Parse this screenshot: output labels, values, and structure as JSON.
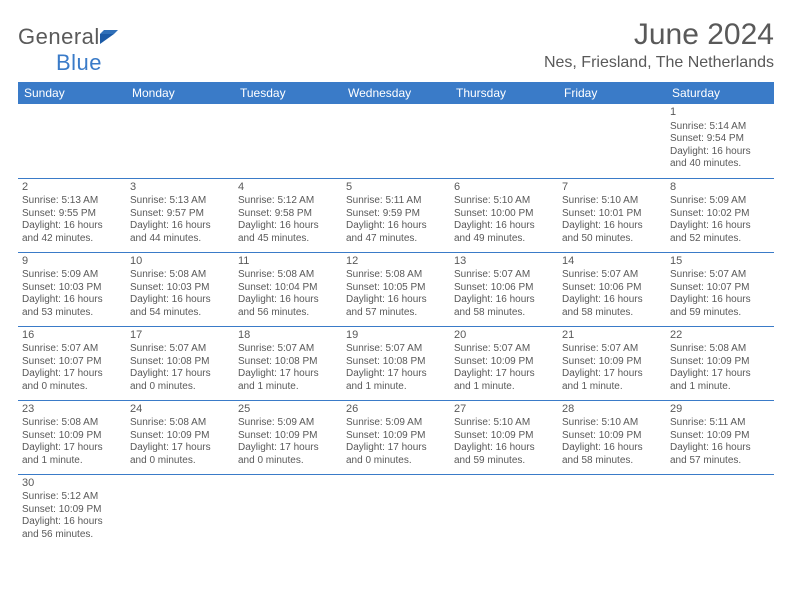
{
  "logo": {
    "text_general": "General",
    "text_blue": "Blue"
  },
  "title": "June 2024",
  "location": "Nes, Friesland, The Netherlands",
  "colors": {
    "header_bg": "#3a7bc8",
    "header_text": "#ffffff",
    "body_text": "#595959",
    "row_border": "#3a7bc8",
    "background": "#ffffff"
  },
  "day_headers": [
    "Sunday",
    "Monday",
    "Tuesday",
    "Wednesday",
    "Thursday",
    "Friday",
    "Saturday"
  ],
  "weeks": [
    [
      null,
      null,
      null,
      null,
      null,
      null,
      {
        "n": "1",
        "sr": "Sunrise: 5:14 AM",
        "ss": "Sunset: 9:54 PM",
        "dl1": "Daylight: 16 hours",
        "dl2": "and 40 minutes."
      }
    ],
    [
      {
        "n": "2",
        "sr": "Sunrise: 5:13 AM",
        "ss": "Sunset: 9:55 PM",
        "dl1": "Daylight: 16 hours",
        "dl2": "and 42 minutes."
      },
      {
        "n": "3",
        "sr": "Sunrise: 5:13 AM",
        "ss": "Sunset: 9:57 PM",
        "dl1": "Daylight: 16 hours",
        "dl2": "and 44 minutes."
      },
      {
        "n": "4",
        "sr": "Sunrise: 5:12 AM",
        "ss": "Sunset: 9:58 PM",
        "dl1": "Daylight: 16 hours",
        "dl2": "and 45 minutes."
      },
      {
        "n": "5",
        "sr": "Sunrise: 5:11 AM",
        "ss": "Sunset: 9:59 PM",
        "dl1": "Daylight: 16 hours",
        "dl2": "and 47 minutes."
      },
      {
        "n": "6",
        "sr": "Sunrise: 5:10 AM",
        "ss": "Sunset: 10:00 PM",
        "dl1": "Daylight: 16 hours",
        "dl2": "and 49 minutes."
      },
      {
        "n": "7",
        "sr": "Sunrise: 5:10 AM",
        "ss": "Sunset: 10:01 PM",
        "dl1": "Daylight: 16 hours",
        "dl2": "and 50 minutes."
      },
      {
        "n": "8",
        "sr": "Sunrise: 5:09 AM",
        "ss": "Sunset: 10:02 PM",
        "dl1": "Daylight: 16 hours",
        "dl2": "and 52 minutes."
      }
    ],
    [
      {
        "n": "9",
        "sr": "Sunrise: 5:09 AM",
        "ss": "Sunset: 10:03 PM",
        "dl1": "Daylight: 16 hours",
        "dl2": "and 53 minutes."
      },
      {
        "n": "10",
        "sr": "Sunrise: 5:08 AM",
        "ss": "Sunset: 10:03 PM",
        "dl1": "Daylight: 16 hours",
        "dl2": "and 54 minutes."
      },
      {
        "n": "11",
        "sr": "Sunrise: 5:08 AM",
        "ss": "Sunset: 10:04 PM",
        "dl1": "Daylight: 16 hours",
        "dl2": "and 56 minutes."
      },
      {
        "n": "12",
        "sr": "Sunrise: 5:08 AM",
        "ss": "Sunset: 10:05 PM",
        "dl1": "Daylight: 16 hours",
        "dl2": "and 57 minutes."
      },
      {
        "n": "13",
        "sr": "Sunrise: 5:07 AM",
        "ss": "Sunset: 10:06 PM",
        "dl1": "Daylight: 16 hours",
        "dl2": "and 58 minutes."
      },
      {
        "n": "14",
        "sr": "Sunrise: 5:07 AM",
        "ss": "Sunset: 10:06 PM",
        "dl1": "Daylight: 16 hours",
        "dl2": "and 58 minutes."
      },
      {
        "n": "15",
        "sr": "Sunrise: 5:07 AM",
        "ss": "Sunset: 10:07 PM",
        "dl1": "Daylight: 16 hours",
        "dl2": "and 59 minutes."
      }
    ],
    [
      {
        "n": "16",
        "sr": "Sunrise: 5:07 AM",
        "ss": "Sunset: 10:07 PM",
        "dl1": "Daylight: 17 hours",
        "dl2": "and 0 minutes."
      },
      {
        "n": "17",
        "sr": "Sunrise: 5:07 AM",
        "ss": "Sunset: 10:08 PM",
        "dl1": "Daylight: 17 hours",
        "dl2": "and 0 minutes."
      },
      {
        "n": "18",
        "sr": "Sunrise: 5:07 AM",
        "ss": "Sunset: 10:08 PM",
        "dl1": "Daylight: 17 hours",
        "dl2": "and 1 minute."
      },
      {
        "n": "19",
        "sr": "Sunrise: 5:07 AM",
        "ss": "Sunset: 10:08 PM",
        "dl1": "Daylight: 17 hours",
        "dl2": "and 1 minute."
      },
      {
        "n": "20",
        "sr": "Sunrise: 5:07 AM",
        "ss": "Sunset: 10:09 PM",
        "dl1": "Daylight: 17 hours",
        "dl2": "and 1 minute."
      },
      {
        "n": "21",
        "sr": "Sunrise: 5:07 AM",
        "ss": "Sunset: 10:09 PM",
        "dl1": "Daylight: 17 hours",
        "dl2": "and 1 minute."
      },
      {
        "n": "22",
        "sr": "Sunrise: 5:08 AM",
        "ss": "Sunset: 10:09 PM",
        "dl1": "Daylight: 17 hours",
        "dl2": "and 1 minute."
      }
    ],
    [
      {
        "n": "23",
        "sr": "Sunrise: 5:08 AM",
        "ss": "Sunset: 10:09 PM",
        "dl1": "Daylight: 17 hours",
        "dl2": "and 1 minute."
      },
      {
        "n": "24",
        "sr": "Sunrise: 5:08 AM",
        "ss": "Sunset: 10:09 PM",
        "dl1": "Daylight: 17 hours",
        "dl2": "and 0 minutes."
      },
      {
        "n": "25",
        "sr": "Sunrise: 5:09 AM",
        "ss": "Sunset: 10:09 PM",
        "dl1": "Daylight: 17 hours",
        "dl2": "and 0 minutes."
      },
      {
        "n": "26",
        "sr": "Sunrise: 5:09 AM",
        "ss": "Sunset: 10:09 PM",
        "dl1": "Daylight: 17 hours",
        "dl2": "and 0 minutes."
      },
      {
        "n": "27",
        "sr": "Sunrise: 5:10 AM",
        "ss": "Sunset: 10:09 PM",
        "dl1": "Daylight: 16 hours",
        "dl2": "and 59 minutes."
      },
      {
        "n": "28",
        "sr": "Sunrise: 5:10 AM",
        "ss": "Sunset: 10:09 PM",
        "dl1": "Daylight: 16 hours",
        "dl2": "and 58 minutes."
      },
      {
        "n": "29",
        "sr": "Sunrise: 5:11 AM",
        "ss": "Sunset: 10:09 PM",
        "dl1": "Daylight: 16 hours",
        "dl2": "and 57 minutes."
      }
    ],
    [
      {
        "n": "30",
        "sr": "Sunrise: 5:12 AM",
        "ss": "Sunset: 10:09 PM",
        "dl1": "Daylight: 16 hours",
        "dl2": "and 56 minutes."
      },
      null,
      null,
      null,
      null,
      null,
      null
    ]
  ]
}
